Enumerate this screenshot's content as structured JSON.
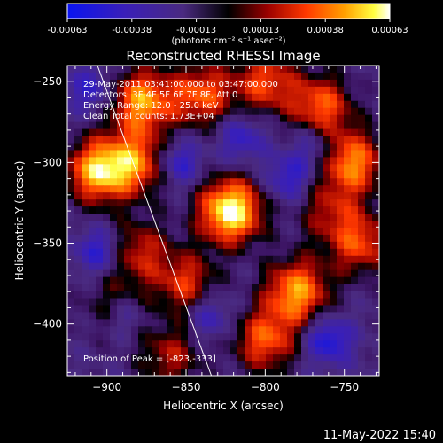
{
  "colorbar": {
    "tick_labels": [
      "-0.00063",
      "-0.00038",
      "-0.00013",
      "0.00013",
      "0.00038",
      "0.00063"
    ],
    "unit_label": "(photons cm⁻² s⁻¹ asec⁻²)"
  },
  "footer": {
    "timestamp": "11-May-2022 15:40"
  },
  "chart_data": {
    "type": "heatmap",
    "title": "Reconstructed RHESSI Image",
    "xlabel": "Heliocentric X (arcsec)",
    "ylabel": "Heliocentric Y (arcsec)",
    "xlim": [
      -925,
      -728
    ],
    "ylim": [
      -432,
      -240
    ],
    "x_ticks": [
      -900,
      -850,
      -800,
      -750
    ],
    "y_ticks": [
      -250,
      -300,
      -350,
      -400
    ],
    "x_tick_labels": [
      "−900",
      "−850",
      "−800",
      "−750"
    ],
    "y_tick_labels": [
      "−250",
      "−300",
      "−350",
      "−400"
    ],
    "colormap": "blue-purple-black-red-yellow-white",
    "color_range": [
      -0.00063,
      0.00063
    ],
    "info": [
      "29-May-2011 03:41:00.000 to 03:47:00.000",
      "Detectors: 3F 4F 5F 6F 7F 8F, Att 0",
      "Energy Range: 12.0 - 25.0 keV",
      "Clean    Total counts: 1.73E+04"
    ],
    "peak_label": "Position of Peak = [-823,-333]",
    "peak": [
      -823,
      -333
    ],
    "limb_line": [
      [
        -906,
        -240
      ],
      [
        -834,
        -432
      ]
    ],
    "hot_spots": [
      {
        "x": -822,
        "y": -330,
        "v": 1.0
      },
      {
        "x": -905,
        "y": -305,
        "v": 0.85
      },
      {
        "x": -880,
        "y": -300,
        "v": 0.6
      },
      {
        "x": -878,
        "y": -262,
        "v": 0.75
      },
      {
        "x": -840,
        "y": -258,
        "v": 0.6
      },
      {
        "x": -800,
        "y": -250,
        "v": 0.55
      },
      {
        "x": -765,
        "y": -265,
        "v": 0.6
      },
      {
        "x": -745,
        "y": -300,
        "v": 0.7
      },
      {
        "x": -740,
        "y": -350,
        "v": 0.55
      },
      {
        "x": -780,
        "y": -380,
        "v": 0.75
      },
      {
        "x": -800,
        "y": -410,
        "v": 0.6
      },
      {
        "x": -850,
        "y": -375,
        "v": 0.5
      },
      {
        "x": -880,
        "y": -355,
        "v": 0.45
      },
      {
        "x": -860,
        "y": -420,
        "v": 0.4
      },
      {
        "x": -895,
        "y": -390,
        "v": 0.35
      },
      {
        "x": -760,
        "y": -330,
        "v": 0.35
      }
    ],
    "cold_spots": [
      {
        "x": -855,
        "y": -300,
        "v": 0.6
      },
      {
        "x": -815,
        "y": -285,
        "v": 0.5
      },
      {
        "x": -785,
        "y": -310,
        "v": 0.55
      },
      {
        "x": -905,
        "y": -355,
        "v": 0.6
      },
      {
        "x": -890,
        "y": -395,
        "v": 0.5
      },
      {
        "x": -835,
        "y": -395,
        "v": 0.5
      },
      {
        "x": -760,
        "y": -410,
        "v": 0.7
      },
      {
        "x": -910,
        "y": -255,
        "v": 0.5
      },
      {
        "x": -770,
        "y": -290,
        "v": 0.4
      }
    ]
  }
}
